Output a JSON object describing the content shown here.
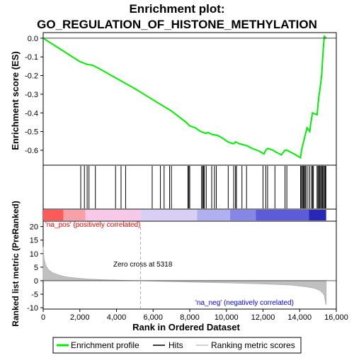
{
  "title_line1": "Enrichment plot:",
  "title_line2": "GO_REGULATION_OF_HISTONE_METHYLATION",
  "top_panel": {
    "ylabel": "Enrichment score (ES)",
    "yticks": [
      "0.0",
      "-0.1",
      "-0.2",
      "-0.3",
      "-0.4",
      "-0.5",
      "-0.6"
    ]
  },
  "bottom_panel": {
    "ylabel": "Ranked list metric (PreRanked)",
    "yticks": [
      "20",
      "15",
      "10",
      "5",
      "0",
      "-5",
      "-10"
    ],
    "pos_label": "'na_pos' (positively correlated)",
    "neg_label": "'na_neg' (negatively correlated)",
    "zero_cross_label": "Zero cross at 5318"
  },
  "xlabel": "Rank in Ordered Dataset",
  "xticks": [
    "0",
    "2,000",
    "4,000",
    "6,000",
    "8,000",
    "10,000",
    "12,000",
    "14,000",
    "16,000"
  ],
  "legend": {
    "profile": "Enrichment profile",
    "hits": "Hits",
    "metric": "Ranking metric scores"
  },
  "colors": {
    "profile": "#00ee00",
    "hits": "#000000",
    "metric": "#c0c0c0",
    "pos_text": "#ff0000",
    "neg_text": "#0000ff"
  },
  "chart_data": {
    "type": "line",
    "x_range": [
      0,
      16000
    ],
    "es_range": [
      -0.68,
      0.03
    ],
    "metric_range": [
      -10.5,
      22
    ],
    "zero_cross": 5318,
    "dataset_size": 15447,
    "es_profile": {
      "x": [
        0,
        2000,
        2400,
        2700,
        3000,
        4000,
        5000,
        6000,
        7000,
        7800,
        8000,
        8300,
        8600,
        8750,
        8900,
        9000,
        9200,
        9500,
        9800,
        10000,
        10200,
        10400,
        10500,
        10700,
        10900,
        11100,
        11400,
        11800,
        12050,
        12150,
        12250,
        12550,
        12700,
        13000,
        13200,
        13300,
        13700,
        14050,
        14100,
        14200,
        14300,
        14400,
        14550,
        14600,
        14700,
        14950,
        15000,
        15050,
        15100,
        15150,
        15200,
        15250,
        15300,
        15350,
        15447
      ],
      "y": [
        0.0,
        -0.125,
        -0.14,
        -0.145,
        -0.16,
        -0.215,
        -0.27,
        -0.33,
        -0.39,
        -0.45,
        -0.47,
        -0.48,
        -0.5,
        -0.505,
        -0.51,
        -0.505,
        -0.515,
        -0.52,
        -0.535,
        -0.55,
        -0.56,
        -0.565,
        -0.555,
        -0.565,
        -0.57,
        -0.575,
        -0.59,
        -0.605,
        -0.62,
        -0.6,
        -0.59,
        -0.6,
        -0.61,
        -0.625,
        -0.6,
        -0.6,
        -0.62,
        -0.64,
        -0.6,
        -0.56,
        -0.52,
        -0.48,
        -0.5,
        -0.46,
        -0.4,
        -0.41,
        -0.36,
        -0.31,
        -0.28,
        -0.24,
        -0.2,
        -0.12,
        -0.04,
        0.01,
        0.0
      ]
    },
    "hits": [
      2050,
      2250,
      2400,
      2500,
      2850,
      3950,
      4250,
      4500,
      5950,
      6400,
      6600,
      6900,
      7000,
      7900,
      7950,
      8000,
      8650,
      8700,
      8750,
      8800,
      8900,
      9200,
      9350,
      9450,
      10100,
      10400,
      10500,
      10550,
      10850,
      11100,
      12000,
      12150,
      12250,
      12650,
      13200,
      13300,
      14050,
      14100,
      14150,
      14200,
      14250,
      14300,
      14350,
      14450,
      14550,
      14650,
      14700,
      14750,
      14950,
      15000,
      15050,
      15100,
      15150,
      15200,
      15250,
      15300,
      15350,
      15400,
      15430
    ],
    "metric": {
      "x": [
        0,
        50,
        150,
        300,
        500,
        800,
        1200,
        1800,
        2500,
        3500,
        4500,
        5318,
        6500,
        8000,
        10000,
        12000,
        13500,
        14300,
        14800,
        15100,
        15250,
        15350,
        15420,
        15447
      ],
      "y": [
        12.5,
        8,
        5.5,
        4,
        3,
        2.2,
        1.5,
        1.0,
        0.6,
        0.3,
        0.12,
        0,
        -0.25,
        -0.5,
        -0.8,
        -1.2,
        -1.6,
        -2.2,
        -2.8,
        -3.6,
        -4.5,
        -5.5,
        -8.5,
        -8.8
      ]
    },
    "color_bar": [
      {
        "start": 0,
        "end": 1100,
        "color": "#ff5a5a"
      },
      {
        "start": 1100,
        "end": 2300,
        "color": "#f8a0a8"
      },
      {
        "start": 2300,
        "end": 5318,
        "color": "#f8c8e8"
      },
      {
        "start": 5318,
        "end": 8400,
        "color": "#d8d0f4"
      },
      {
        "start": 8400,
        "end": 10200,
        "color": "#b0b0f0"
      },
      {
        "start": 10200,
        "end": 11600,
        "color": "#8686e6"
      },
      {
        "start": 11600,
        "end": 14500,
        "color": "#5c5cd8"
      },
      {
        "start": 14500,
        "end": 15447,
        "color": "#2828b8"
      }
    ]
  }
}
